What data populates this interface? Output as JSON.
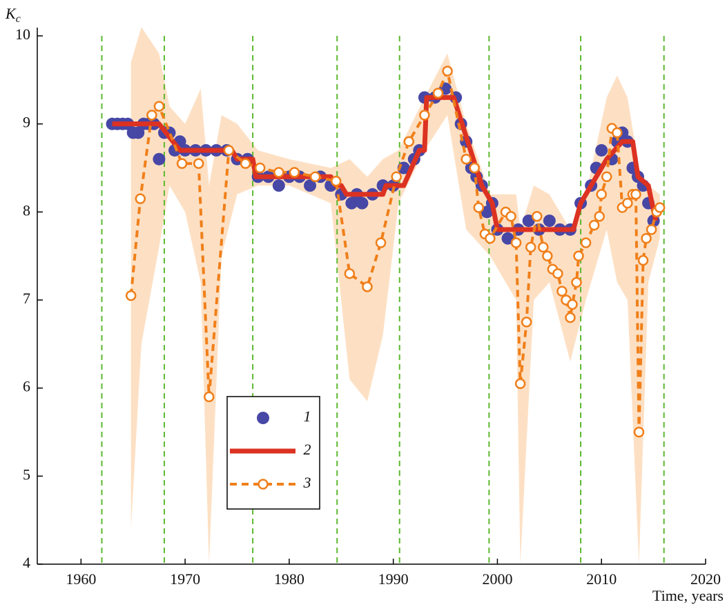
{
  "chart_data": {
    "type": "line",
    "ylabel": "K",
    "ylabel_sub": "c",
    "xlabel": "Time, years",
    "xlim": [
      1955.8,
      2020
    ],
    "ylim": [
      4,
      10
    ],
    "xticks": [
      1960,
      1970,
      1980,
      1990,
      2000,
      2010,
      2020
    ],
    "yticks": [
      4,
      5,
      6,
      7,
      8,
      9,
      10
    ],
    "vlines": [
      1962,
      1968,
      1976.5,
      1984.6,
      1990.6,
      1999.2,
      2008,
      2016
    ],
    "vline_color": "#5cb82e",
    "band": {
      "color": "#fde0c4",
      "x": [
        1964.8,
        1965.8,
        1967.5,
        1968.5,
        1970,
        1971.5,
        1972.3,
        1973.5,
        1975,
        1977,
        1980,
        1984,
        1985.8,
        1987.5,
        1989,
        1990.5,
        1993,
        1995.2,
        1997,
        1999.3,
        2001.8,
        2002.2,
        2003.5,
        2005,
        2007,
        2008.5,
        2010.5,
        2011.5,
        2012.5,
        2013.6,
        2014.5,
        2015.6
      ],
      "lower": [
        4.4,
        6.5,
        7.6,
        8.3,
        8.0,
        7.2,
        4.0,
        7.5,
        8.2,
        8.3,
        8.3,
        8.1,
        6.1,
        5.85,
        6.6,
        8.1,
        8.7,
        9.1,
        7.8,
        7.5,
        7.0,
        4.0,
        7.0,
        7.2,
        6.3,
        7.0,
        7.8,
        7.2,
        7.0,
        4.0,
        7.2,
        7.7
      ],
      "upper": [
        9.7,
        10.1,
        9.8,
        9.2,
        9.0,
        9.4,
        8.3,
        9.1,
        9.0,
        8.7,
        8.6,
        8.5,
        8.6,
        8.4,
        8.6,
        8.7,
        9.3,
        9.8,
        9.0,
        8.2,
        8.2,
        7.8,
        8.3,
        8.2,
        7.8,
        8.2,
        9.3,
        9.55,
        9.3,
        8.5,
        8.3,
        8.2
      ]
    },
    "series": [
      {
        "name": "1",
        "style": "dots",
        "color": "#4747a6",
        "x": [
          1963,
          1963.5,
          1964,
          1964.5,
          1965,
          1965.5,
          1966,
          1966.5,
          1967,
          1967.5,
          1968,
          1968.5,
          1969,
          1969.5,
          1970,
          1971,
          1972,
          1973,
          1974,
          1975,
          1976,
          1977,
          1978,
          1979,
          1980,
          1981,
          1982,
          1983,
          1984,
          1985,
          1986,
          1986.5,
          1987,
          1988,
          1989,
          1990,
          1991,
          1992,
          1992.5,
          1993,
          1994,
          1995,
          1996,
          1996.5,
          1997,
          1997.5,
          1998,
          1998.5,
          1999,
          1999.5,
          2000,
          2001,
          2002,
          2003,
          2004,
          2005,
          2006,
          2007,
          2008,
          2009,
          2009.5,
          2010,
          2011,
          2011.5,
          2012,
          2012.5,
          2013,
          2013.5,
          2014,
          2014.5,
          2015
        ],
        "values": [
          9.0,
          9.0,
          9.0,
          9.0,
          8.9,
          8.9,
          9.0,
          9.0,
          9.0,
          8.6,
          8.9,
          8.9,
          8.7,
          8.8,
          8.7,
          8.7,
          8.7,
          8.7,
          8.7,
          8.6,
          8.6,
          8.4,
          8.4,
          8.3,
          8.4,
          8.4,
          8.3,
          8.4,
          8.3,
          8.2,
          8.1,
          8.2,
          8.1,
          8.2,
          8.3,
          8.3,
          8.5,
          8.6,
          8.7,
          9.3,
          9.3,
          9.4,
          9.3,
          9.0,
          8.8,
          8.5,
          8.4,
          8.3,
          8.0,
          8.1,
          7.8,
          7.7,
          7.8,
          7.9,
          7.8,
          7.9,
          7.8,
          7.8,
          8.1,
          8.3,
          8.5,
          8.7,
          8.6,
          8.8,
          8.9,
          8.8,
          8.5,
          8.4,
          8.3,
          8.1,
          7.9
        ]
      },
      {
        "name": "2",
        "style": "solid",
        "color": "#dc3222",
        "x": [
          1963,
          1967.5,
          1968.5,
          1969.5,
          1974.5,
          1975,
          1976.5,
          1976.8,
          1984,
          1984.5,
          1985,
          1985.5,
          1989,
          1989.3,
          1991,
          1992.5,
          1993,
          1993.2,
          1995.8,
          1998.5,
          1999.5,
          2000,
          2007.3,
          2008,
          2009,
          2010.5,
          2012,
          2013,
          2013.5,
          2014.5,
          2015.2
        ],
        "values": [
          9.0,
          9.0,
          8.85,
          8.7,
          8.7,
          8.6,
          8.6,
          8.4,
          8.4,
          8.3,
          8.3,
          8.2,
          8.2,
          8.3,
          8.3,
          8.7,
          8.7,
          9.3,
          9.3,
          8.3,
          8.1,
          7.8,
          7.8,
          8.1,
          8.3,
          8.6,
          8.8,
          8.8,
          8.4,
          8.3,
          7.9
        ]
      },
      {
        "name": "3",
        "style": "dashed-circles",
        "color": "#f07f1a",
        "x": [
          1964.8,
          1965.7,
          1966.8,
          1967.5,
          1969.7,
          1971.3,
          1972.3,
          1974.2,
          1975.8,
          1977.2,
          1979,
          1980.5,
          1982.5,
          1984.5,
          1985.8,
          1987.5,
          1988.8,
          1990.3,
          1991.5,
          1993,
          1994.3,
          1995.2,
          1997,
          1997.8,
          1998.2,
          1998.8,
          1999.3,
          2000.8,
          2001.3,
          2001.8,
          2002.2,
          2002.8,
          2003.2,
          2003.8,
          2004.4,
          2004.8,
          2005.3,
          2005.8,
          2006.2,
          2006.6,
          2007,
          2007.2,
          2007.6,
          2007.8,
          2008.5,
          2009.3,
          2009.8,
          2010,
          2010.5,
          2011,
          2011.5,
          2012,
          2012.5,
          2013,
          2013.3,
          2013.6,
          2014,
          2014.3,
          2014.8,
          2015.3,
          2015.6
        ],
        "values": [
          7.05,
          8.15,
          9.1,
          9.2,
          8.55,
          8.55,
          5.9,
          8.7,
          8.55,
          8.5,
          8.45,
          8.45,
          8.4,
          8.35,
          7.3,
          7.15,
          7.65,
          8.4,
          8.8,
          9.1,
          9.35,
          9.6,
          8.6,
          8.5,
          8.05,
          7.75,
          7.7,
          8.0,
          7.95,
          7.65,
          6.05,
          6.75,
          7.6,
          7.95,
          7.6,
          7.5,
          7.35,
          7.3,
          7.1,
          7.0,
          6.8,
          6.95,
          7.2,
          7.5,
          7.65,
          7.85,
          7.95,
          8.2,
          8.4,
          8.95,
          8.9,
          8.05,
          8.1,
          8.2,
          8.2,
          5.5,
          7.45,
          7.7,
          7.8,
          8.0,
          8.05
        ]
      }
    ]
  }
}
